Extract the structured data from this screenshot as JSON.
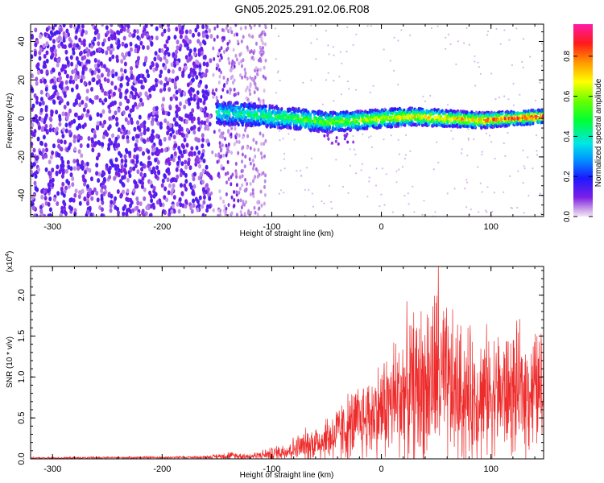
{
  "title": "GN05.2025.291.02.06.R08",
  "chart_data": [
    {
      "type": "heatmap",
      "xlabel": "Height of straight line (km)",
      "ylabel": "Frequency (Hz)",
      "xlim": [
        -320,
        148
      ],
      "ylim": [
        -51,
        49
      ],
      "xticks": [
        -300,
        -200,
        -100,
        0,
        100
      ],
      "yticks": [
        -40,
        -20,
        0,
        20,
        40
      ],
      "colorbar": {
        "label": "Normalized spectral amplitude",
        "range": [
          0.0,
          0.96
        ],
        "ticks": [
          "0.0",
          "0.2",
          "0.4",
          "0.6",
          "0.8"
        ],
        "tick_values": [
          0.0,
          0.2,
          0.4,
          0.6,
          0.8
        ]
      },
      "regions": [
        {
          "name": "broadband noise",
          "x_range": [
            -320,
            -155
          ],
          "amplitude": 0.15
        },
        {
          "name": "transition",
          "x_range": [
            -155,
            -105
          ],
          "amplitude": 0.08
        },
        {
          "name": "signal band",
          "x_range": [
            -155,
            148
          ],
          "center_freq": [
            3,
            2,
            0,
            -2,
            -1,
            0,
            1,
            0,
            -1,
            0,
            1
          ],
          "center_x": [
            -150,
            -120,
            -80,
            -50,
            -20,
            0,
            30,
            60,
            90,
            120,
            148
          ],
          "peak_amplitude": 0.95
        }
      ]
    },
    {
      "type": "line",
      "xlabel": "Height of straight line (km)",
      "ylabel": "SNR (10 * v/v)",
      "y_multiplier": "(x10",
      "y_multiplier_exp": "4",
      "xlim": [
        -320,
        148
      ],
      "ylim": [
        0.0,
        2.35
      ],
      "xticks": [
        -300,
        -200,
        -100,
        0,
        100
      ],
      "yticks": [
        "0.0",
        "0.5",
        "1.0",
        "1.5",
        "2.0"
      ],
      "ytick_values": [
        0.0,
        0.5,
        1.0,
        1.5,
        2.0
      ],
      "series": [
        {
          "name": "SNR",
          "color": "#ee2b2b",
          "envelope_x": [
            -320,
            -160,
            -140,
            -120,
            -100,
            -80,
            -60,
            -40,
            -20,
            0,
            20,
            40,
            50,
            60,
            80,
            100,
            120,
            148
          ],
          "envelope_mean": [
            0.01,
            0.02,
            0.04,
            0.03,
            0.06,
            0.12,
            0.2,
            0.3,
            0.45,
            0.6,
            0.8,
            0.9,
            1.0,
            0.85,
            0.75,
            0.8,
            0.8,
            0.85
          ],
          "envelope_spread": [
            0.01,
            0.02,
            0.06,
            0.05,
            0.1,
            0.18,
            0.3,
            0.45,
            0.6,
            0.75,
            1.1,
            1.25,
            1.35,
            1.2,
            1.0,
            0.95,
            0.95,
            0.9
          ],
          "peak": {
            "x": 52,
            "y": 2.35
          }
        }
      ]
    }
  ]
}
